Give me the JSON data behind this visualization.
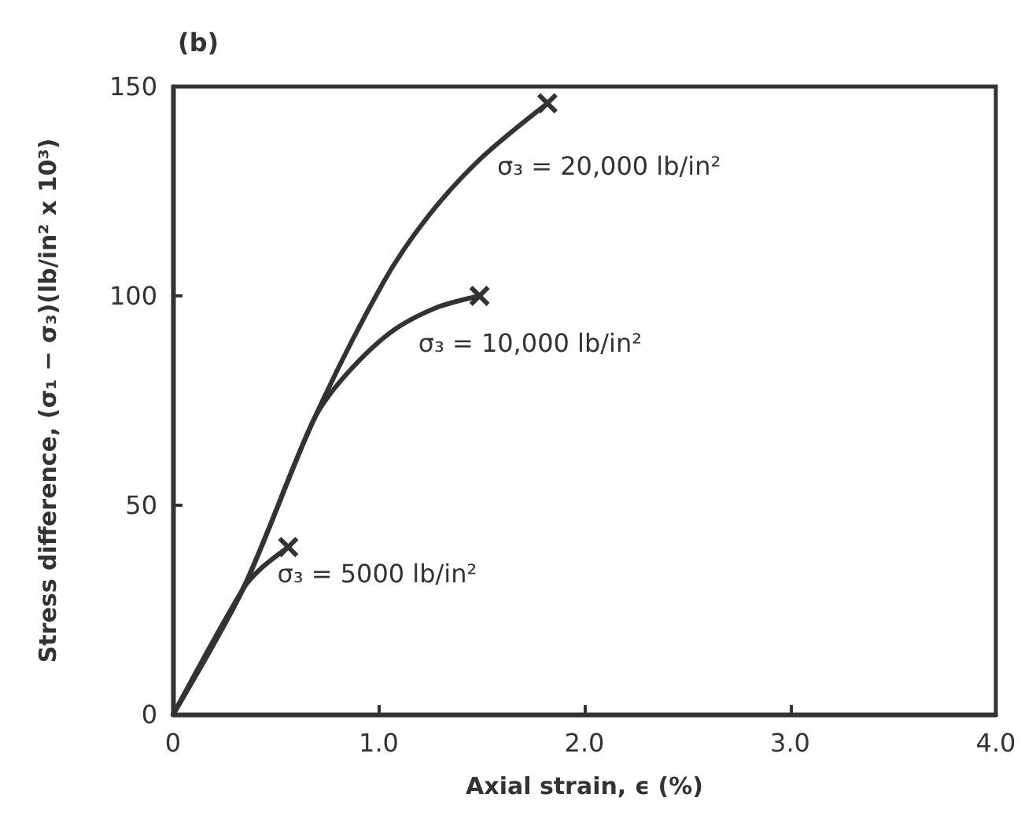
{
  "chart_data": {
    "type": "line",
    "title": "(b)",
    "xlabel": "Axial strain, ϵ (%)",
    "ylabel": "Stress difference, (σ₁ − σ₃)(lb/in² x 10³)",
    "xlim": [
      0,
      4
    ],
    "xticks": [
      0,
      {
        "value": 1,
        "label": "1.0"
      },
      {
        "value": 2,
        "label": "2.0"
      },
      {
        "value": 3,
        "label": "3.0"
      },
      {
        "value": 4,
        "label": "4.0"
      }
    ],
    "ylim": [
      0,
      150
    ],
    "yticks": [
      0,
      50,
      100,
      150
    ],
    "line_style": "solid",
    "series": [
      {
        "name": "σ₃ = 20,000 lb/in²",
        "color": "#333333",
        "x": [
          0,
          0.34,
          0.68,
          1.02,
          1.24,
          1.5,
          1.82
        ],
        "values": [
          0,
          30,
          70,
          103,
          119,
          133,
          146
        ]
      },
      {
        "name": "σ₃ = 10,000 lb/in²",
        "color": "#333333",
        "x": [
          0,
          0.34,
          0.68,
          0.82,
          1.05,
          1.27,
          1.49
        ],
        "values": [
          0,
          30,
          70,
          80,
          91,
          97,
          100
        ]
      },
      {
        "name": "σ₃ = 5000 lb/in²",
        "color": "#333333",
        "x": [
          0,
          0.34,
          0.43,
          0.56
        ],
        "values": [
          0,
          30,
          35,
          40
        ]
      },
      {
        "type": "scatter",
        "marker": "cross",
        "color": "#333333",
        "x": [
          1.82,
          1.49,
          0.56
        ],
        "values": [
          146,
          100,
          40
        ]
      }
    ]
  }
}
